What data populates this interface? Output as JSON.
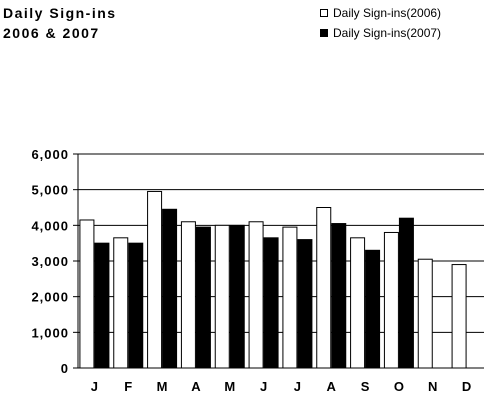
{
  "chart_data": {
    "type": "bar",
    "title_lines": [
      "Daily Sign-ins",
      "2006 & 2007"
    ],
    "categories": [
      "J",
      "F",
      "M",
      "A",
      "M",
      "J",
      "J",
      "A",
      "S",
      "O",
      "N",
      "D"
    ],
    "series": [
      {
        "name": "Daily Sign-ins(2006)",
        "color": "#ffffff",
        "values": [
          4150,
          3650,
          4950,
          4100,
          4000,
          4100,
          3950,
          4500,
          3650,
          3800,
          3050,
          2900
        ]
      },
      {
        "name": "Daily Sign-ins(2007)",
        "color": "#000000",
        "values": [
          3500,
          3500,
          4450,
          3950,
          4000,
          3650,
          3600,
          4050,
          3300,
          4200,
          null,
          null
        ]
      }
    ],
    "ylim": [
      0,
      6000
    ],
    "y_ticks": [
      "0",
      "1,000",
      "2,000",
      "3,000",
      "4,000",
      "5,000",
      "6,000"
    ],
    "y_tick_values": [
      0,
      1000,
      2000,
      3000,
      4000,
      5000,
      6000
    ],
    "grid": true,
    "legend_position": "top-right"
  }
}
